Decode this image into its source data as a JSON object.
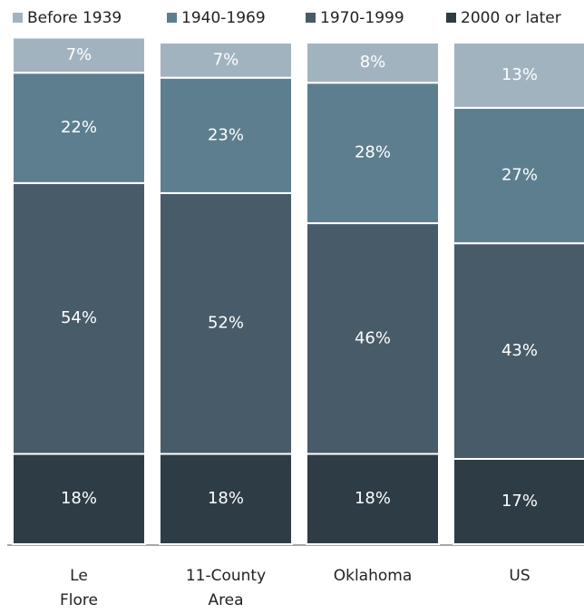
{
  "chart_data": {
    "type": "stacked_bar",
    "categories": [
      "Le Flore",
      "11-County Area",
      "Oklahoma",
      "US"
    ],
    "series": [
      {
        "name": "Before 1939",
        "color": "#a2b3c0",
        "values": [
          7,
          7,
          8,
          13
        ],
        "value_labels": [
          "7%",
          "7%",
          "8%",
          "13%"
        ]
      },
      {
        "name": "1940-1969",
        "color": "#5d7e8f",
        "values": [
          22,
          23,
          28,
          27
        ],
        "value_labels": [
          "22%",
          "23%",
          "28%",
          "27%"
        ]
      },
      {
        "name": "1970-1999",
        "color": "#485b68",
        "values": [
          54,
          52,
          46,
          43
        ],
        "value_labels": [
          "54%",
          "52%",
          "46%",
          "43%"
        ]
      },
      {
        "name": "2000 or later",
        "color": "#2e3c45",
        "values": [
          18,
          18,
          18,
          17
        ],
        "value_labels": [
          "18%",
          "18%",
          "18%",
          "17%"
        ]
      }
    ],
    "ylim": [
      0,
      100
    ]
  }
}
